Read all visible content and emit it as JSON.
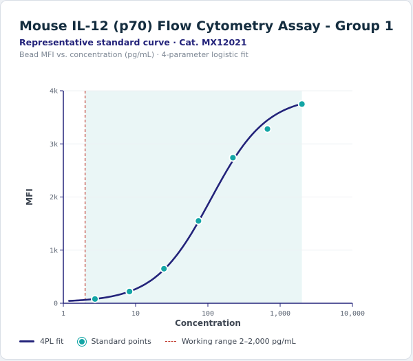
{
  "header": {
    "title": "Mouse IL-12 (p70) Flow Cytometry Assay - Group 1",
    "subtitle": "Representative standard curve · Cat. MX12021",
    "caption": "Bead MFI vs. concentration (pg/mL) · 4-parameter logistic fit"
  },
  "legend": {
    "fit": "4PL fit",
    "points": "Standard points",
    "range": "Working range 2–2,000 pg/mL"
  },
  "colors": {
    "curve": "#23237a",
    "points": "#13a5a5",
    "range_line": "#c0392b",
    "range_fill": "#eaf6f6"
  },
  "chart_data": {
    "type": "scatter",
    "xlabel": "Concentration",
    "ylabel": "MFI",
    "x_scale": "log",
    "xlim": [
      1,
      10000
    ],
    "ylim": [
      0,
      4000
    ],
    "x_ticks": [
      {
        "value": 1,
        "label": "1"
      },
      {
        "value": 10,
        "label": "10"
      },
      {
        "value": 100,
        "label": "100"
      },
      {
        "value": 1000,
        "label": "1,000"
      },
      {
        "value": 10000,
        "label": "10,000"
      }
    ],
    "y_ticks": [
      {
        "value": 0,
        "label": "0"
      },
      {
        "value": 1000,
        "label": "1k"
      },
      {
        "value": 2000,
        "label": "2k"
      },
      {
        "value": 3000,
        "label": "3k"
      },
      {
        "value": 4000,
        "label": "4k"
      }
    ],
    "working_range": [
      2,
      2000
    ],
    "series": [
      {
        "name": "Standard points",
        "type": "scatter",
        "points": [
          {
            "x": 2.74,
            "y": 80
          },
          {
            "x": 8.23,
            "y": 220
          },
          {
            "x": 24.7,
            "y": 650
          },
          {
            "x": 74.1,
            "y": 1550
          },
          {
            "x": 222,
            "y": 2740
          },
          {
            "x": 667,
            "y": 3280
          },
          {
            "x": 2000,
            "y": 3750
          }
        ]
      },
      {
        "name": "4PL fit",
        "type": "line",
        "model": {
          "bottom": 20,
          "top": 3900,
          "ec50": 110,
          "hill": 1.12
        },
        "x_range": [
          1.2,
          2000
        ]
      }
    ]
  }
}
